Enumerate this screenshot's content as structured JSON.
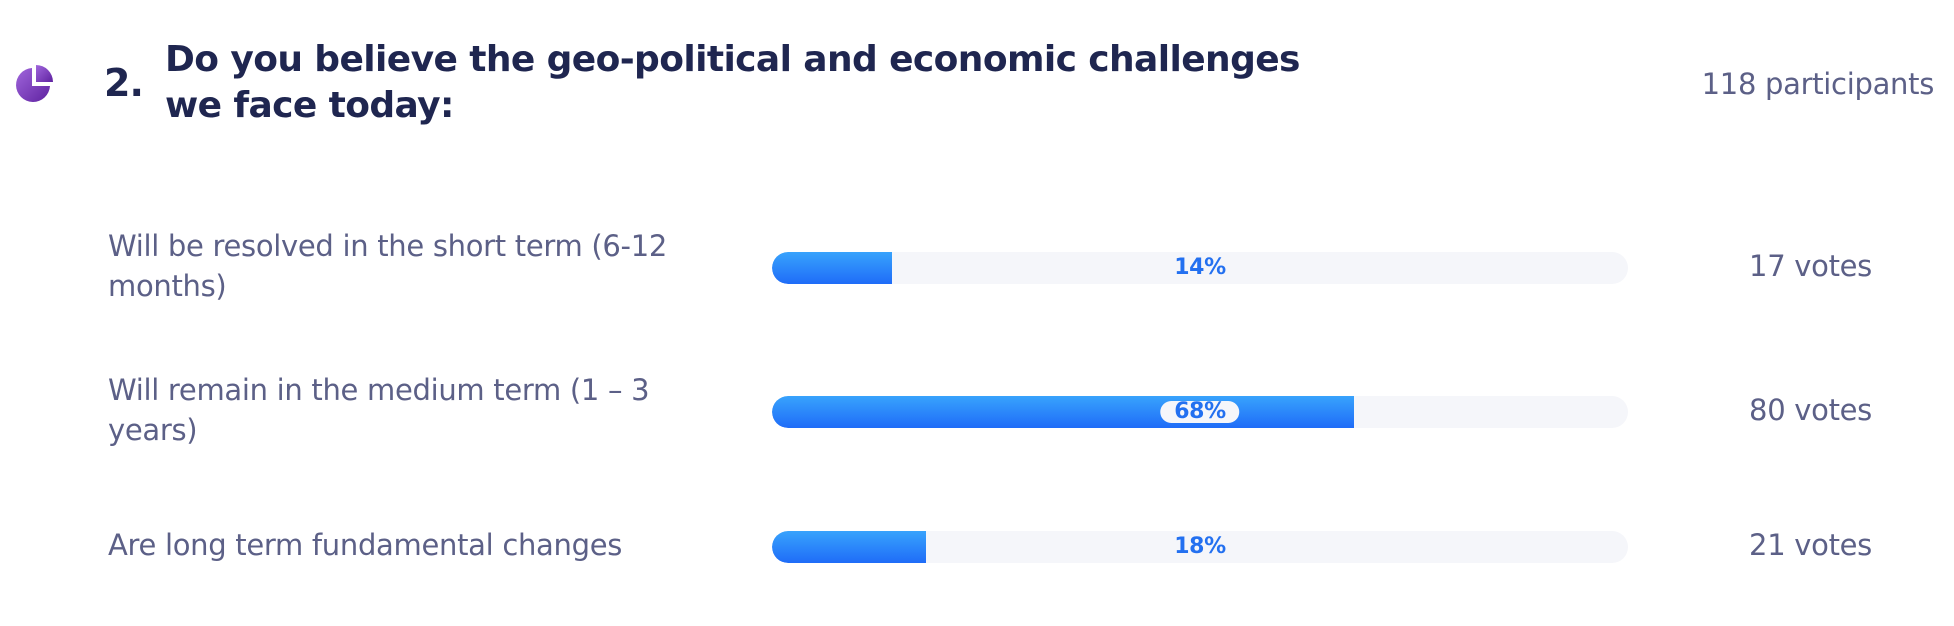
{
  "question": {
    "icon": "pie-chart-icon",
    "number": "2.",
    "title": "Do you believe the geo-political and economic challenges we face today:",
    "participants": "118 participants"
  },
  "options": [
    {
      "label": "Will be resolved in the short term (6-12 months)",
      "percent": 14,
      "percent_label": "14%",
      "votes": "17 votes"
    },
    {
      "label": "Will remain in the medium term (1 – 3 years)",
      "percent": 68,
      "percent_label": "68%",
      "votes": "80 votes"
    },
    {
      "label": "Are long term fundamental changes",
      "percent": 18,
      "percent_label": "18%",
      "votes": "21 votes"
    }
  ],
  "colors": {
    "title": "#1f2650",
    "text_muted": "#5c6087",
    "bar_fill_top": "#38a3fc",
    "bar_fill_bottom": "#1f6cf8",
    "bar_track": "#f5f6fa",
    "percent_text": "#2370f0",
    "icon_purple_light": "#9b5cd6",
    "icon_purple_dark": "#6a2aa8"
  },
  "chart_data": {
    "type": "bar",
    "orientation": "horizontal",
    "title": "Do you believe the geo-political and economic challenges we face today:",
    "categories": [
      "Will be resolved in the short term (6-12 months)",
      "Will remain in the medium term (1 – 3 years)",
      "Are long term fundamental changes"
    ],
    "values": [
      14,
      68,
      18
    ],
    "votes": [
      17,
      80,
      21
    ],
    "total_participants": 118,
    "unit": "%",
    "xlim": [
      0,
      100
    ]
  }
}
